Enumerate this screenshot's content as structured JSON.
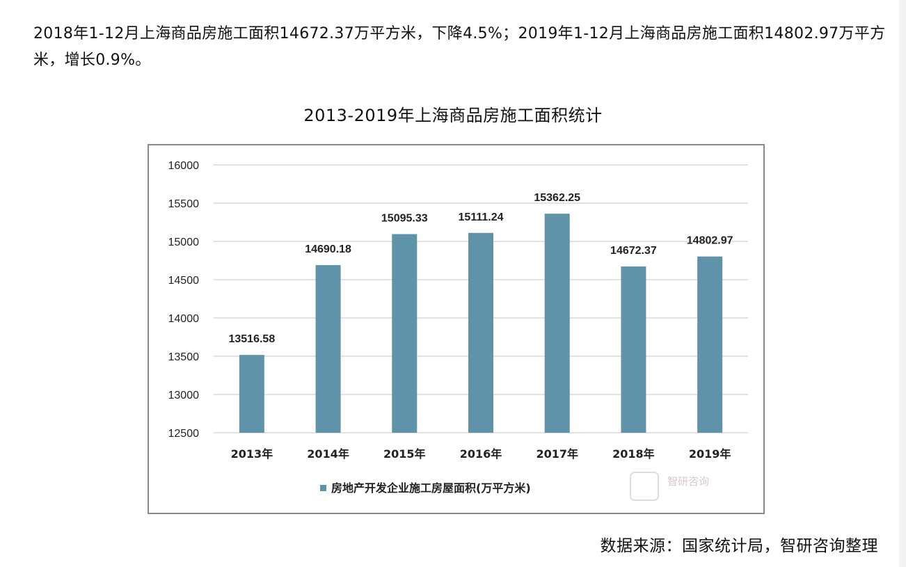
{
  "intro": "2018年1-12月上海商品房施工面积14672.37万平方米，下降4.5%；2019年1-12月上海商品房施工面积14802.97万平方米，增长0.9%。",
  "source": "数据来源：国家统计局，智研咨询整理",
  "watermark": "智研咨询",
  "colors": {
    "bar": "#5e93a9",
    "grid": "#d9d9d9"
  },
  "chart_data": {
    "type": "bar",
    "title": "2013-2019年上海商品房施工面积统计",
    "categories": [
      "2013年",
      "2014年",
      "2015年",
      "2016年",
      "2017年",
      "2018年",
      "2019年"
    ],
    "series": [
      {
        "name": "房地产开发企业施工房屋面积(万平方米)",
        "values": [
          13516.58,
          14690.18,
          15095.33,
          15111.24,
          15362.25,
          14672.37,
          14802.97
        ]
      }
    ],
    "data_labels": [
      "13516.58",
      "14690.18",
      "15095.33",
      "15111.24",
      "15362.25",
      "14672.37",
      "14802.97"
    ],
    "yticks": [
      "12500",
      "13000",
      "13500",
      "14000",
      "14500",
      "15000",
      "15500",
      "16000"
    ],
    "ylim": [
      12500,
      16000
    ],
    "xlabel": "",
    "ylabel": "",
    "grid": true,
    "legend": "bottom"
  }
}
